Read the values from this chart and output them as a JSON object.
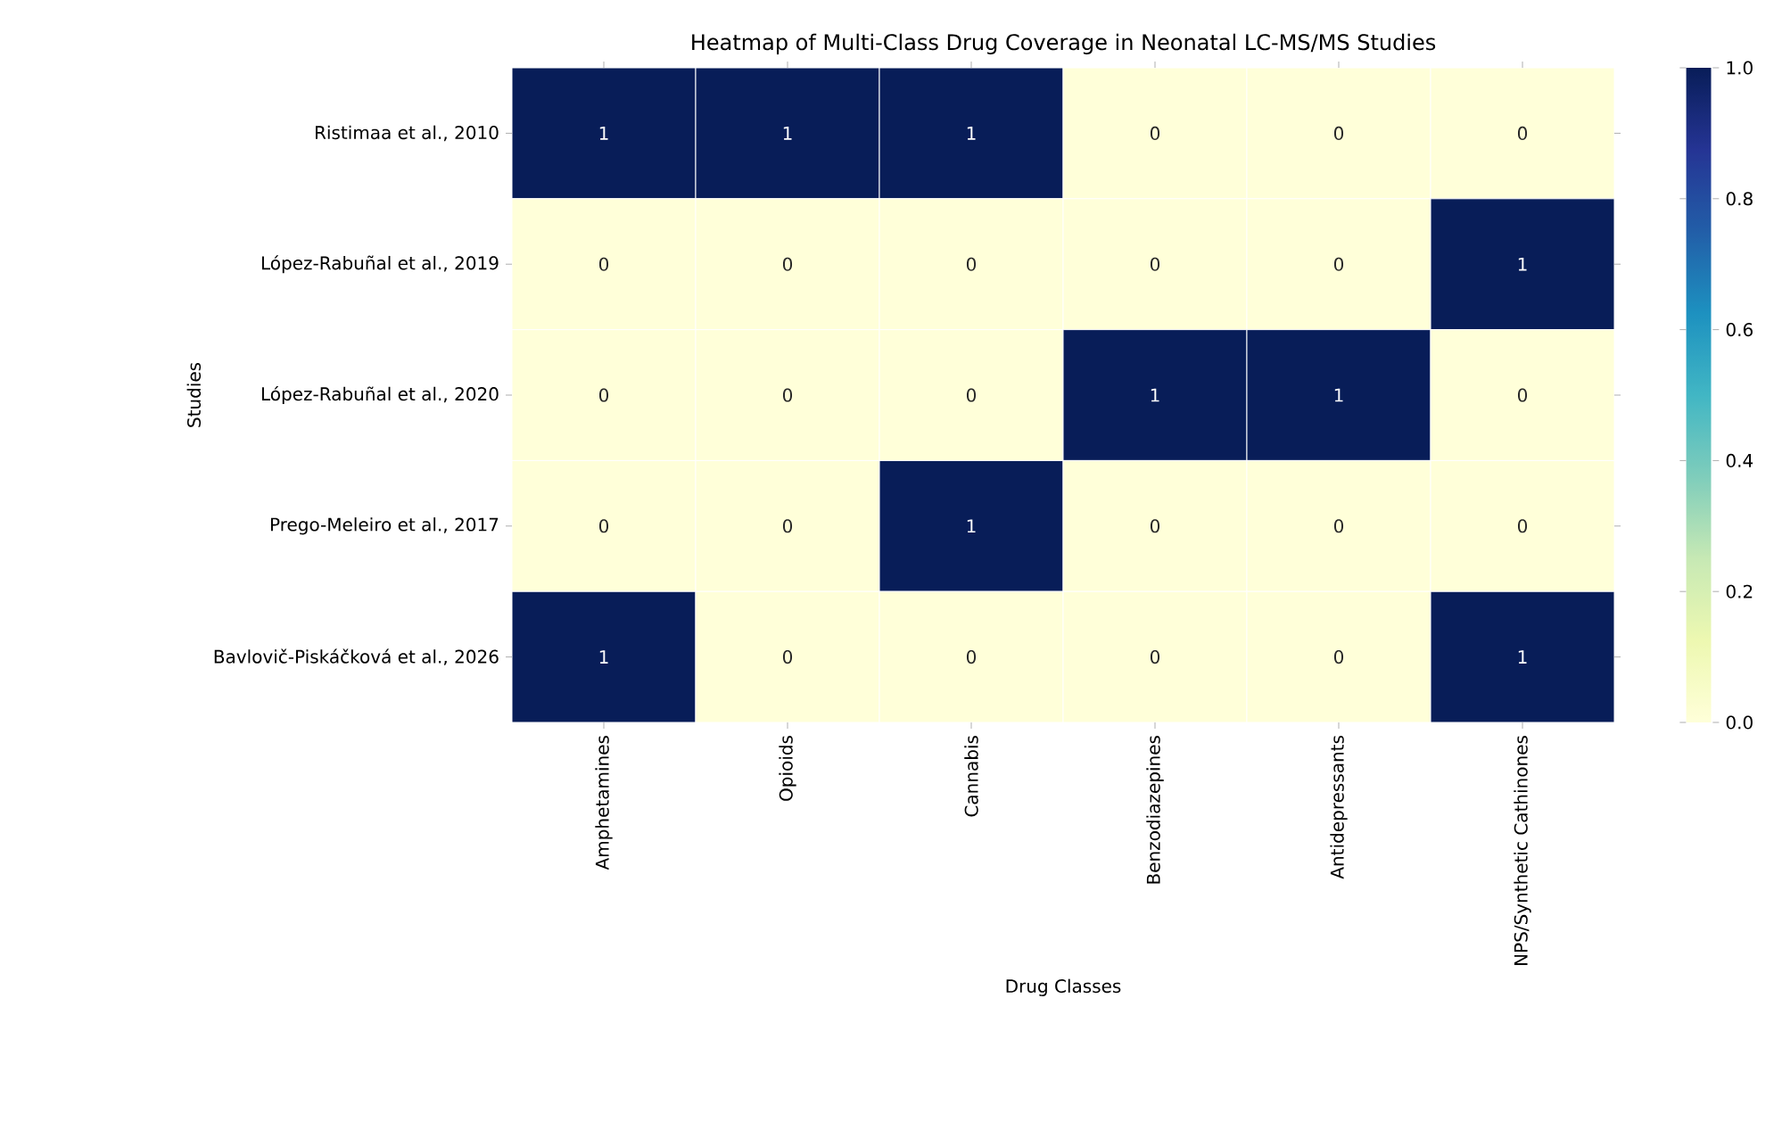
{
  "chart_data": {
    "type": "heatmap",
    "title": "Heatmap of Multi-Class Drug Coverage in Neonatal LC-MS/MS Studies",
    "xlabel": "Drug Classes",
    "ylabel": "Studies",
    "categories": [
      "Amphetamines",
      "Opioids",
      "Cannabis",
      "Benzodiazepines",
      "Antidepressants",
      "NPS/Synthetic Cathinones"
    ],
    "y_categories": [
      "Ristimaa et al., 2010",
      "López-Rabuñal et al., 2019",
      "López-Rabuñal et al., 2020",
      "Prego-Meleiro et al., 2017",
      "Bavlovič-Piskáčková et al., 2026"
    ],
    "cells": [
      [
        1,
        1,
        1,
        0,
        0,
        0
      ],
      [
        0,
        0,
        0,
        0,
        0,
        1
      ],
      [
        0,
        0,
        0,
        1,
        1,
        0
      ],
      [
        0,
        0,
        1,
        0,
        0,
        0
      ],
      [
        1,
        0,
        0,
        0,
        0,
        1
      ]
    ],
    "data_labels": true,
    "clim": [
      0,
      1
    ],
    "cticks": [
      {
        "value": 0,
        "label": "0.0"
      },
      {
        "value": 0.2,
        "label": "0.2"
      },
      {
        "value": 0.4,
        "label": "0.4"
      },
      {
        "value": 0.6,
        "label": "0.6"
      },
      {
        "value": 0.8,
        "label": "0.8"
      },
      {
        "value": 1,
        "label": "1.0"
      }
    ]
  }
}
